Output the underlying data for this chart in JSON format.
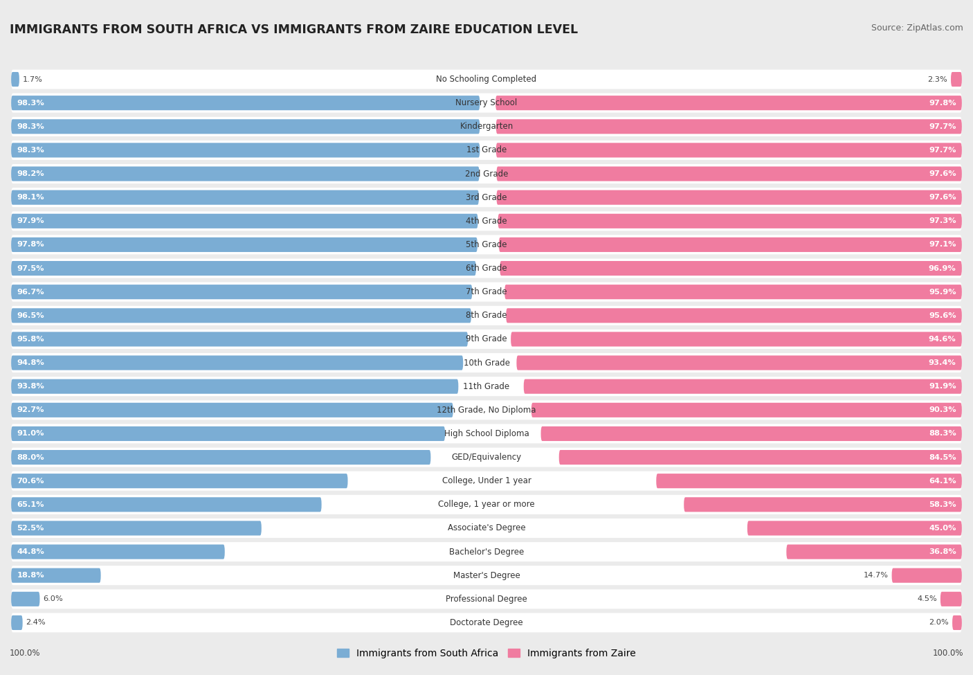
{
  "title": "IMMIGRANTS FROM SOUTH AFRICA VS IMMIGRANTS FROM ZAIRE EDUCATION LEVEL",
  "source": "Source: ZipAtlas.com",
  "categories": [
    "No Schooling Completed",
    "Nursery School",
    "Kindergarten",
    "1st Grade",
    "2nd Grade",
    "3rd Grade",
    "4th Grade",
    "5th Grade",
    "6th Grade",
    "7th Grade",
    "8th Grade",
    "9th Grade",
    "10th Grade",
    "11th Grade",
    "12th Grade, No Diploma",
    "High School Diploma",
    "GED/Equivalency",
    "College, Under 1 year",
    "College, 1 year or more",
    "Associate's Degree",
    "Bachelor's Degree",
    "Master's Degree",
    "Professional Degree",
    "Doctorate Degree"
  ],
  "south_africa": [
    1.7,
    98.3,
    98.3,
    98.3,
    98.2,
    98.1,
    97.9,
    97.8,
    97.5,
    96.7,
    96.5,
    95.8,
    94.8,
    93.8,
    92.7,
    91.0,
    88.0,
    70.6,
    65.1,
    52.5,
    44.8,
    18.8,
    6.0,
    2.4
  ],
  "zaire": [
    2.3,
    97.8,
    97.7,
    97.7,
    97.6,
    97.6,
    97.3,
    97.1,
    96.9,
    95.9,
    95.6,
    94.6,
    93.4,
    91.9,
    90.3,
    88.3,
    84.5,
    64.1,
    58.3,
    45.0,
    36.8,
    14.7,
    4.5,
    2.0
  ],
  "color_sa": "#7badd4",
  "color_zaire": "#f07ca0",
  "background_color": "#ebebeb",
  "bar_bg_color": "#ffffff",
  "legend_sa": "Immigrants from South Africa",
  "legend_zaire": "Immigrants from Zaire",
  "label_threshold": 15.0
}
